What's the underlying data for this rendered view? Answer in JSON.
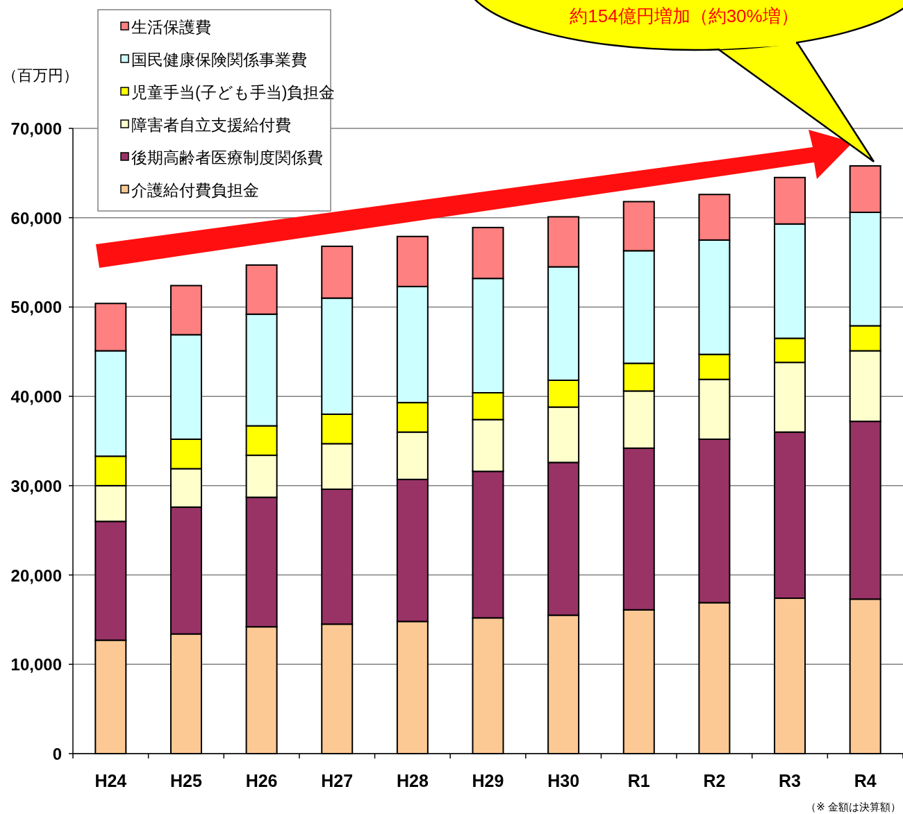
{
  "chart_data": {
    "type": "bar",
    "stacked": true,
    "categories": [
      "H24",
      "H25",
      "H26",
      "H27",
      "H28",
      "H29",
      "H30",
      "R1",
      "R2",
      "R3",
      "R4"
    ],
    "series": [
      {
        "name": "介護給付費負担金",
        "color": "#fcc995",
        "values": [
          12700,
          13400,
          14200,
          14500,
          14800,
          15200,
          15500,
          16100,
          16900,
          17400,
          17300
        ]
      },
      {
        "name": "後期高齢者医療制度関係費",
        "color": "#993366",
        "values": [
          13300,
          14200,
          14500,
          15100,
          15900,
          16400,
          17100,
          18100,
          18300,
          18600,
          19900
        ]
      },
      {
        "name": "障害者自立支援給付費",
        "color": "#ffffcc",
        "values": [
          4000,
          4300,
          4700,
          5100,
          5300,
          5800,
          6200,
          6400,
          6700,
          7800,
          7900
        ]
      },
      {
        "name": "児童手当(子ども手当)負担金",
        "color": "#ffff00",
        "values": [
          3300,
          3300,
          3300,
          3300,
          3300,
          3000,
          3000,
          3100,
          2800,
          2700,
          2800
        ]
      },
      {
        "name": "国民健康保険関係事業費",
        "color": "#ccffff",
        "values": [
          11800,
          11700,
          12500,
          13000,
          13000,
          12800,
          12700,
          12600,
          12800,
          12800,
          12700
        ]
      },
      {
        "name": "生活保護費",
        "color": "#ff8080",
        "values": [
          5300,
          5500,
          5500,
          5800,
          5600,
          5700,
          5600,
          5500,
          5100,
          5200,
          5200
        ]
      }
    ],
    "ylabel": "（百万円）",
    "ylim": [
      0,
      70000
    ],
    "yticks": [
      0,
      {
        "value": 10000,
        "label": "10,000"
      },
      {
        "value": 20000,
        "label": "20,000"
      },
      {
        "value": 30000,
        "label": "30,000"
      },
      {
        "value": 40000,
        "label": "40,000"
      },
      {
        "value": 50000,
        "label": "50,000"
      },
      {
        "value": 60000,
        "label": "60,000"
      },
      {
        "value": 70000,
        "label": "70,000"
      }
    ],
    "grid": "y",
    "legend": "top left",
    "annotations": [
      "約154億円増加（約30%増）",
      "（※ 金額は決算額）"
    ]
  }
}
